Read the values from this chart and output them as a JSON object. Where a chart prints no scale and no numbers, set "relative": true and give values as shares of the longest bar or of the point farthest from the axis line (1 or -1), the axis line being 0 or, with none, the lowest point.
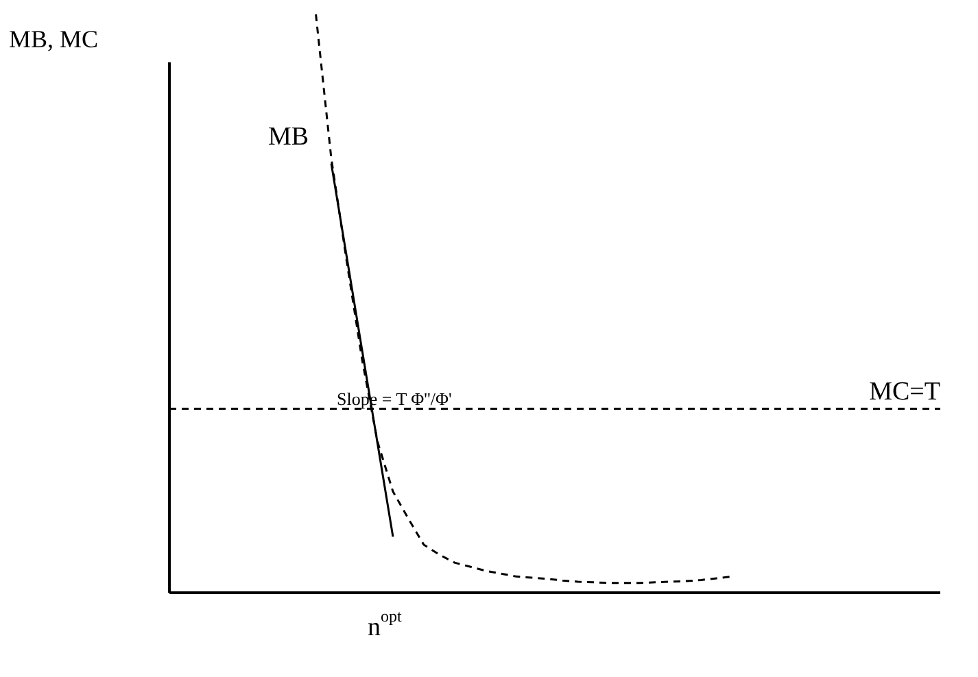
{
  "chart_data": {
    "type": "line",
    "relative": true,
    "ylabel": "MB, MC",
    "marker": "none",
    "categories": [
      null,
      null,
      null,
      null,
      null,
      null,
      null,
      null,
      null,
      null,
      null,
      null,
      null,
      null,
      null,
      null,
      null,
      null,
      null,
      null,
      null,
      null,
      null,
      null,
      null,
      null,
      null,
      null,
      null,
      null,
      null,
      null,
      null,
      null,
      null,
      null,
      null,
      null,
      null,
      null,
      null,
      null,
      null,
      null,
      null,
      null,
      null,
      null,
      null,
      null
    ],
    "series": [
      {
        "color": "#000000",
        "line_style": "dashed",
        "values": [
          null,
          null,
          null,
          null,
          null,
          null,
          null,
          null,
          null,
          1.0,
          0.751,
          0.573,
          0.403,
          0.261,
          0.175,
          0.128,
          0.083,
          0.066,
          0.052,
          0.045,
          0.038,
          0.033,
          0.028,
          0.026,
          0.024,
          0.021,
          0.019,
          0.018,
          0.017,
          0.017,
          0.017,
          0.018,
          0.019,
          0.02,
          0.022,
          0.025,
          0.028,
          null,
          null,
          null,
          null,
          null,
          null,
          null,
          null,
          null,
          null,
          null,
          null,
          null
        ]
      },
      {
        "color": "#000000",
        "line_style": "solid",
        "values": [
          null,
          null,
          null,
          null,
          null,
          null,
          null,
          null,
          null,
          null,
          0.742,
          0.581,
          0.419,
          0.258,
          0.097,
          null,
          null,
          null,
          null,
          null,
          null,
          null,
          null,
          null,
          null,
          null,
          null,
          null,
          null,
          null,
          null,
          null,
          null,
          null,
          null,
          null,
          null,
          null,
          null,
          null,
          null,
          null,
          null,
          null,
          null,
          null,
          null,
          null,
          null,
          null
        ]
      }
    ],
    "ref_lines": [
      {
        "axis": "y",
        "value": 0.318,
        "label": "MC=T",
        "line_style": "dashed",
        "color": "#000000"
      }
    ],
    "annotations": [
      "MB",
      "Slope = T Φ''/Φ'",
      "n$^{opt}$"
    ]
  }
}
